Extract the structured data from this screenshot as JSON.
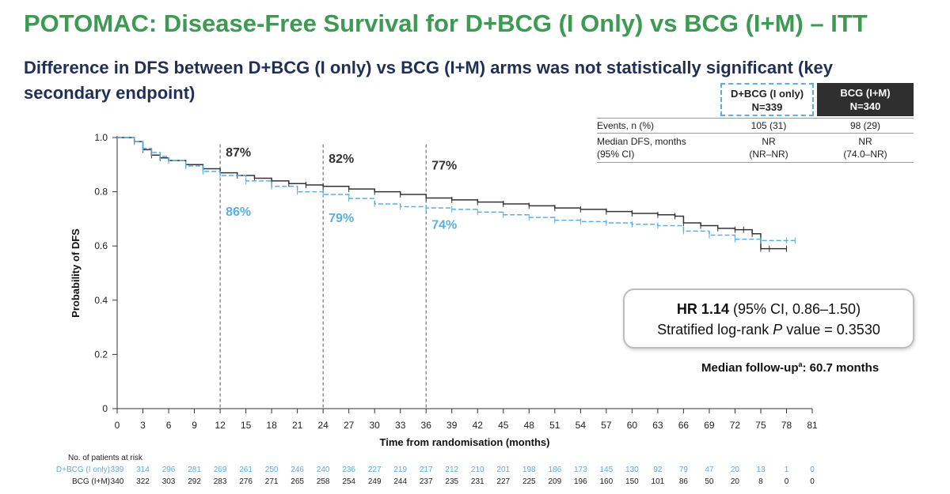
{
  "title": "POTOMAC: Disease-Free Survival for D+BCG (I Only) vs BCG (I+M) – ITT",
  "subtitle": "Difference in DFS between D+BCG (I only) vs BCG (I+M) arms was not statistically significant (key secondary endpoint)",
  "colors": {
    "title": "#3d9a52",
    "subtitle": "#1f2f55",
    "dbcg": "#5aaee4",
    "bcg": "#333333"
  },
  "stats_table": {
    "arm1": {
      "name": "D+BCG (I only)",
      "n": "N=339"
    },
    "arm2": {
      "name": "BCG (I+M)",
      "n": "N=340"
    },
    "rows": [
      {
        "label": "Events, n (%)",
        "arm1": "105 (31)",
        "arm2": "98 (29)"
      },
      {
        "label": "Median DFS, months",
        "label2": "(95% CI)",
        "arm1": "NR",
        "arm1b": "(NR–NR)",
        "arm2": "NR",
        "arm2b": "(74.0–NR)"
      }
    ]
  },
  "hr_box": {
    "hr_label": "HR 1.14",
    "ci": " (95% CI, 0.86–1.50)",
    "pvalue_prefix": "Stratified log-rank ",
    "pvalue_p": "P",
    "pvalue_suffix": " value = 0.3530"
  },
  "median_followup": {
    "text": "Median follow-up",
    "sup": "a",
    "value": ": 60.7 months"
  },
  "chart_data": {
    "type": "line",
    "xlabel": "Time from randomisation (months)",
    "ylabel": "Probability of DFS",
    "xlim": [
      0,
      81
    ],
    "ylim": [
      0,
      1.0
    ],
    "xticks": [
      0,
      3,
      6,
      9,
      12,
      15,
      18,
      21,
      24,
      27,
      30,
      33,
      36,
      39,
      42,
      45,
      48,
      51,
      54,
      57,
      60,
      63,
      66,
      69,
      72,
      75,
      78,
      81
    ],
    "yticks": [
      "0",
      "0.2",
      "0.4",
      "0.6",
      "0.8",
      "1.0"
    ],
    "grid": false,
    "landmarks": [
      {
        "x": 12,
        "bcg": "87%",
        "dbcg": "86%"
      },
      {
        "x": 24,
        "bcg": "82%",
        "dbcg": "79%"
      },
      {
        "x": 36,
        "bcg": "77%",
        "dbcg": "74%"
      }
    ],
    "series": [
      {
        "name": "BCG (I+M)",
        "color": "#333333",
        "style": "solid",
        "x": [
          0,
          2,
          3,
          4,
          5,
          6,
          8,
          10,
          12,
          14,
          16,
          18,
          20,
          22,
          24,
          27,
          30,
          33,
          36,
          39,
          42,
          45,
          48,
          51,
          54,
          57,
          60,
          63,
          65,
          66,
          68,
          70,
          72,
          73,
          74,
          75,
          76,
          78
        ],
        "y": [
          1.0,
          0.985,
          0.955,
          0.935,
          0.925,
          0.915,
          0.9,
          0.885,
          0.87,
          0.86,
          0.85,
          0.84,
          0.83,
          0.825,
          0.82,
          0.81,
          0.8,
          0.79,
          0.777,
          0.77,
          0.762,
          0.755,
          0.748,
          0.74,
          0.735,
          0.727,
          0.72,
          0.715,
          0.71,
          0.685,
          0.675,
          0.665,
          0.66,
          0.66,
          0.645,
          0.59,
          0.59,
          0.59
        ]
      },
      {
        "name": "D+BCG (I only)",
        "color": "#5aaee4",
        "style": "dashed",
        "x": [
          0,
          2,
          3,
          4,
          5,
          6,
          8,
          10,
          12,
          15,
          18,
          21,
          24,
          27,
          30,
          33,
          36,
          39,
          42,
          45,
          48,
          51,
          54,
          57,
          60,
          63,
          66,
          69,
          72,
          75,
          78,
          79
        ],
        "y": [
          1.0,
          0.985,
          0.96,
          0.945,
          0.93,
          0.915,
          0.895,
          0.875,
          0.86,
          0.84,
          0.82,
          0.8,
          0.79,
          0.775,
          0.755,
          0.745,
          0.74,
          0.735,
          0.725,
          0.715,
          0.705,
          0.695,
          0.69,
          0.685,
          0.68,
          0.675,
          0.655,
          0.64,
          0.625,
          0.62,
          0.62,
          0.62
        ]
      }
    ],
    "at_risk": {
      "title": "No. of patients at risk",
      "rows": [
        {
          "label": "D+BCG (I only)",
          "color": "#5aaee4",
          "values": [
            339,
            314,
            296,
            281,
            269,
            261,
            250,
            246,
            240,
            236,
            227,
            219,
            217,
            212,
            210,
            201,
            198,
            186,
            173,
            145,
            130,
            92,
            79,
            47,
            20,
            13,
            1,
            0
          ]
        },
        {
          "label": "BCG (I+M)",
          "color": "#222222",
          "values": [
            340,
            322,
            303,
            292,
            283,
            276,
            271,
            265,
            258,
            254,
            249,
            244,
            237,
            235,
            231,
            227,
            225,
            209,
            196,
            160,
            150,
            101,
            86,
            50,
            20,
            8,
            0,
            0
          ]
        }
      ]
    }
  }
}
